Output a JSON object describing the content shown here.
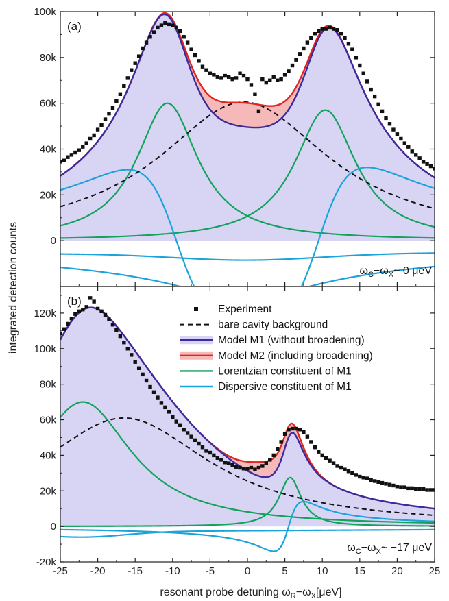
{
  "colors": {
    "m1_fill": "#d8d4f4",
    "m2_fill": "#f6b9b9",
    "m1_line": "#3b2b9e",
    "m2_line": "#e0261e",
    "lorentzian": "#13a25c",
    "dispersive": "#1ca3dc",
    "background": "#111111",
    "experiment": "#111111"
  },
  "axes": {
    "x_title_pre": "resonant probe detuning ω",
    "x_sub1": "R",
    "x_mid": "−ω",
    "x_sub2": "X",
    "x_post": "[μeV]",
    "y_title": "integrated detection counts"
  },
  "legend": [
    {
      "label": "Experiment",
      "style": "marker"
    },
    {
      "label": "bare cavity background",
      "style": "dashed"
    },
    {
      "label": "Model M1 (without broadening)",
      "style": "m1"
    },
    {
      "label": "Model M2 (including broadening)",
      "style": "m2"
    },
    {
      "label": "Lorentzian constituent of M1",
      "style": "lorentzian"
    },
    {
      "label": "Dispersive constituent of M1",
      "style": "dispersive"
    }
  ],
  "chart_data": [
    {
      "type": "line",
      "panel_label": "(a)",
      "condition": {
        "pre": "ω",
        "sub1": "C",
        "mid": "−ω",
        "sub2": "X",
        "post": "~ 0 μeV"
      },
      "xlim": [
        -25,
        25
      ],
      "ylim": [
        -20000,
        100000
      ],
      "x_ticks": [
        -25,
        -20,
        -15,
        -10,
        -5,
        0,
        5,
        10,
        15,
        20,
        25
      ],
      "y_ticks": [
        0,
        20000,
        40000,
        60000,
        80000,
        100000
      ],
      "y_tick_labels": [
        "0",
        "20k",
        "40k",
        "60k",
        "80k",
        "100k"
      ],
      "x_tick_labels": [],
      "params": {
        "bg": {
          "A": 60500,
          "x0": -0.5,
          "g": 14
        },
        "lor": [
          {
            "A": 60000,
            "x0": -10.7,
            "g": 5.0
          },
          {
            "A": 57000,
            "x0": 10.4,
            "g": 5.0
          }
        ],
        "disp": [
          {
            "D": 31000,
            "x0": -9.5,
            "g": 6.5,
            "sign": -1
          },
          {
            "D": 32000,
            "x0": 9.5,
            "g": 6.5,
            "sign": 1
          }
        ],
        "disp_base": {
          "A": -5500,
          "s": 8,
          "x0": 0,
          "g": 14
        },
        "m2_bump": {
          "A": 10500,
          "x0": 0,
          "w": 6.5
        }
      },
      "experiment": [
        [
          -25,
          34500
        ],
        [
          -24.5,
          35000
        ],
        [
          -24,
          36500
        ],
        [
          -23.5,
          37500
        ],
        [
          -23,
          38500
        ],
        [
          -22.5,
          39500
        ],
        [
          -22,
          41000
        ],
        [
          -21.5,
          42500
        ],
        [
          -21,
          44500
        ],
        [
          -20.5,
          46000
        ],
        [
          -20,
          48500
        ],
        [
          -19.5,
          50500
        ],
        [
          -19,
          53000
        ],
        [
          -18.5,
          55500
        ],
        [
          -18,
          58000
        ],
        [
          -17.5,
          61000
        ],
        [
          -17,
          64000
        ],
        [
          -16.5,
          67500
        ],
        [
          -16,
          71000
        ],
        [
          -15.5,
          74500
        ],
        [
          -15,
          77500
        ],
        [
          -14.5,
          80500
        ],
        [
          -14,
          84000
        ],
        [
          -13.5,
          86500
        ],
        [
          -13,
          89000
        ],
        [
          -12.5,
          91000
        ],
        [
          -12,
          93000
        ],
        [
          -11.5,
          94000
        ],
        [
          -11,
          95000
        ],
        [
          -10.5,
          94500
        ],
        [
          -10,
          94000
        ],
        [
          -9.5,
          93000
        ],
        [
          -9,
          91500
        ],
        [
          -8.5,
          89000
        ],
        [
          -8,
          86500
        ],
        [
          -7.5,
          83500
        ],
        [
          -7,
          81000
        ],
        [
          -6.5,
          78500
        ],
        [
          -6,
          76000
        ],
        [
          -5.5,
          74500
        ],
        [
          -5,
          73000
        ],
        [
          -4.5,
          72500
        ],
        [
          -4,
          71500
        ],
        [
          -3.5,
          71000
        ],
        [
          -3,
          72000
        ],
        [
          -2.5,
          71500
        ],
        [
          -2,
          70500
        ],
        [
          -1.5,
          71000
        ],
        [
          -1,
          73000
        ],
        [
          -0.5,
          72000
        ],
        [
          0,
          70500
        ],
        [
          0.5,
          68000
        ],
        [
          1,
          64000
        ],
        [
          1.5,
          56500
        ],
        [
          2,
          70500
        ],
        [
          2.5,
          69000
        ],
        [
          3,
          70000
        ],
        [
          3.5,
          71500
        ],
        [
          4,
          70000
        ],
        [
          4.5,
          70500
        ],
        [
          5,
          72500
        ],
        [
          5.5,
          74000
        ],
        [
          6,
          76500
        ],
        [
          6.5,
          79000
        ],
        [
          7,
          81500
        ],
        [
          7.5,
          84000
        ],
        [
          8,
          86500
        ],
        [
          8.5,
          88500
        ],
        [
          9,
          90500
        ],
        [
          9.5,
          91500
        ],
        [
          10,
          92500
        ],
        [
          10.5,
          92500
        ],
        [
          11,
          93000
        ],
        [
          11.5,
          92500
        ],
        [
          12,
          92000
        ],
        [
          12.5,
          90500
        ],
        [
          13,
          88500
        ],
        [
          13.5,
          86000
        ],
        [
          14,
          83500
        ],
        [
          14.5,
          80000
        ],
        [
          15,
          76500
        ],
        [
          15.5,
          73000
        ],
        [
          16,
          69500
        ],
        [
          16.5,
          66000
        ],
        [
          17,
          63000
        ],
        [
          17.5,
          59500
        ],
        [
          18,
          56500
        ],
        [
          18.5,
          53500
        ],
        [
          19,
          51000
        ],
        [
          19.5,
          48500
        ],
        [
          20,
          46500
        ],
        [
          20.5,
          44500
        ],
        [
          21,
          42500
        ],
        [
          21.5,
          41000
        ],
        [
          22,
          39000
        ],
        [
          22.5,
          37500
        ],
        [
          23,
          36000
        ],
        [
          23.5,
          34500
        ],
        [
          24,
          33500
        ],
        [
          24.5,
          32500
        ],
        [
          25,
          31500
        ]
      ]
    },
    {
      "type": "line",
      "panel_label": "(b)",
      "condition": {
        "pre": "ω",
        "sub1": "C",
        "mid": "−ω",
        "sub2": "X",
        "post": "~ −17 μeV"
      },
      "xlim": [
        -25,
        25
      ],
      "ylim": [
        -20000,
        135000
      ],
      "x_ticks": [
        -25,
        -20,
        -15,
        -10,
        -5,
        0,
        5,
        10,
        15,
        20,
        25
      ],
      "x_tick_labels": [
        "-25",
        "-20",
        "-15",
        "-10",
        "-5",
        "0",
        "5",
        "10",
        "15",
        "20",
        "25"
      ],
      "y_ticks": [
        -20000,
        0,
        20000,
        40000,
        60000,
        80000,
        100000,
        120000
      ],
      "y_tick_labels": [
        "-20k",
        "0",
        "20k",
        "40k",
        "60k",
        "80k",
        "100k",
        "120k"
      ],
      "params": {
        "bg": {
          "A": 61000,
          "x0": -16.5,
          "g": 14
        },
        "lor": [
          {
            "A": 70000,
            "x0": -22,
            "g": 8.0
          },
          {
            "A": 27500,
            "x0": 5.7,
            "g": 1.8
          }
        ],
        "disp": [
          {
            "D": 14000,
            "x0": 5.5,
            "g": 2.0,
            "sign": 1
          }
        ],
        "disp_base": {
          "A": -3000,
          "s": 25,
          "x0": -22,
          "g": 8
        },
        "m2_bump": {
          "A": 9000,
          "x0": 3.0,
          "w": 4.0
        }
      },
      "experiment": [
        [
          -25,
          108500
        ],
        [
          -24.5,
          111000
        ],
        [
          -24,
          114000
        ],
        [
          -23.5,
          117000
        ],
        [
          -23,
          119500
        ],
        [
          -22.5,
          121000
        ],
        [
          -22,
          122000
        ],
        [
          -21.5,
          123500
        ],
        [
          -21,
          128500
        ],
        [
          -20.5,
          126500
        ],
        [
          -20,
          122500
        ],
        [
          -19.5,
          121000
        ],
        [
          -19,
          119000
        ],
        [
          -18.5,
          116500
        ],
        [
          -18,
          113500
        ],
        [
          -17.5,
          110500
        ],
        [
          -17,
          107000
        ],
        [
          -16.5,
          103500
        ],
        [
          -16,
          100000
        ],
        [
          -15.5,
          96500
        ],
        [
          -15,
          92500
        ],
        [
          -14.5,
          89000
        ],
        [
          -14,
          85500
        ],
        [
          -13.5,
          82000
        ],
        [
          -13,
          78500
        ],
        [
          -12.5,
          75500
        ],
        [
          -12,
          72500
        ],
        [
          -11.5,
          69500
        ],
        [
          -11,
          67000
        ],
        [
          -10.5,
          64500
        ],
        [
          -10,
          61500
        ],
        [
          -9.5,
          59000
        ],
        [
          -9,
          57000
        ],
        [
          -8.5,
          54500
        ],
        [
          -8,
          52500
        ],
        [
          -7.5,
          50500
        ],
        [
          -7,
          48500
        ],
        [
          -6.5,
          46500
        ],
        [
          -6,
          44500
        ],
        [
          -5.5,
          42500
        ],
        [
          -5,
          41500
        ],
        [
          -4.5,
          40000
        ],
        [
          -4,
          38500
        ],
        [
          -3.5,
          37500
        ],
        [
          -3,
          36000
        ],
        [
          -2.5,
          35500
        ],
        [
          -2,
          34500
        ],
        [
          -1.5,
          33500
        ],
        [
          -1,
          33000
        ],
        [
          -0.5,
          32500
        ],
        [
          0,
          32500
        ],
        [
          0.5,
          33000
        ],
        [
          1,
          32000
        ],
        [
          1.5,
          33000
        ],
        [
          2,
          34000
        ],
        [
          2.5,
          35500
        ],
        [
          3,
          37500
        ],
        [
          3.5,
          40000
        ],
        [
          4,
          43500
        ],
        [
          4.5,
          47500
        ],
        [
          5,
          52000
        ],
        [
          5.5,
          54500
        ],
        [
          6,
          55000
        ],
        [
          6.5,
          55000
        ],
        [
          7,
          54500
        ],
        [
          7.5,
          53000
        ],
        [
          8,
          50500
        ],
        [
          8.5,
          47500
        ],
        [
          9,
          44500
        ],
        [
          9.5,
          42000
        ],
        [
          10,
          40000
        ],
        [
          10.5,
          38500
        ],
        [
          11,
          37000
        ],
        [
          11.5,
          35500
        ],
        [
          12,
          34000
        ],
        [
          12.5,
          33000
        ],
        [
          13,
          32000
        ],
        [
          13.5,
          31000
        ],
        [
          14,
          30000
        ],
        [
          14.5,
          29000
        ],
        [
          15,
          28000
        ],
        [
          15.5,
          27500
        ],
        [
          16,
          27000
        ],
        [
          16.5,
          26000
        ],
        [
          17,
          25500
        ],
        [
          17.5,
          25000
        ],
        [
          18,
          24500
        ],
        [
          18.5,
          24000
        ],
        [
          19,
          23500
        ],
        [
          19.5,
          23000
        ],
        [
          20,
          22500
        ],
        [
          20.5,
          22000
        ],
        [
          21,
          22000
        ],
        [
          21.5,
          21500
        ],
        [
          22,
          21500
        ],
        [
          22.5,
          21000
        ],
        [
          23,
          21000
        ],
        [
          23.5,
          21000
        ],
        [
          24,
          20500
        ],
        [
          24.5,
          20500
        ],
        [
          25,
          20500
        ]
      ]
    }
  ]
}
